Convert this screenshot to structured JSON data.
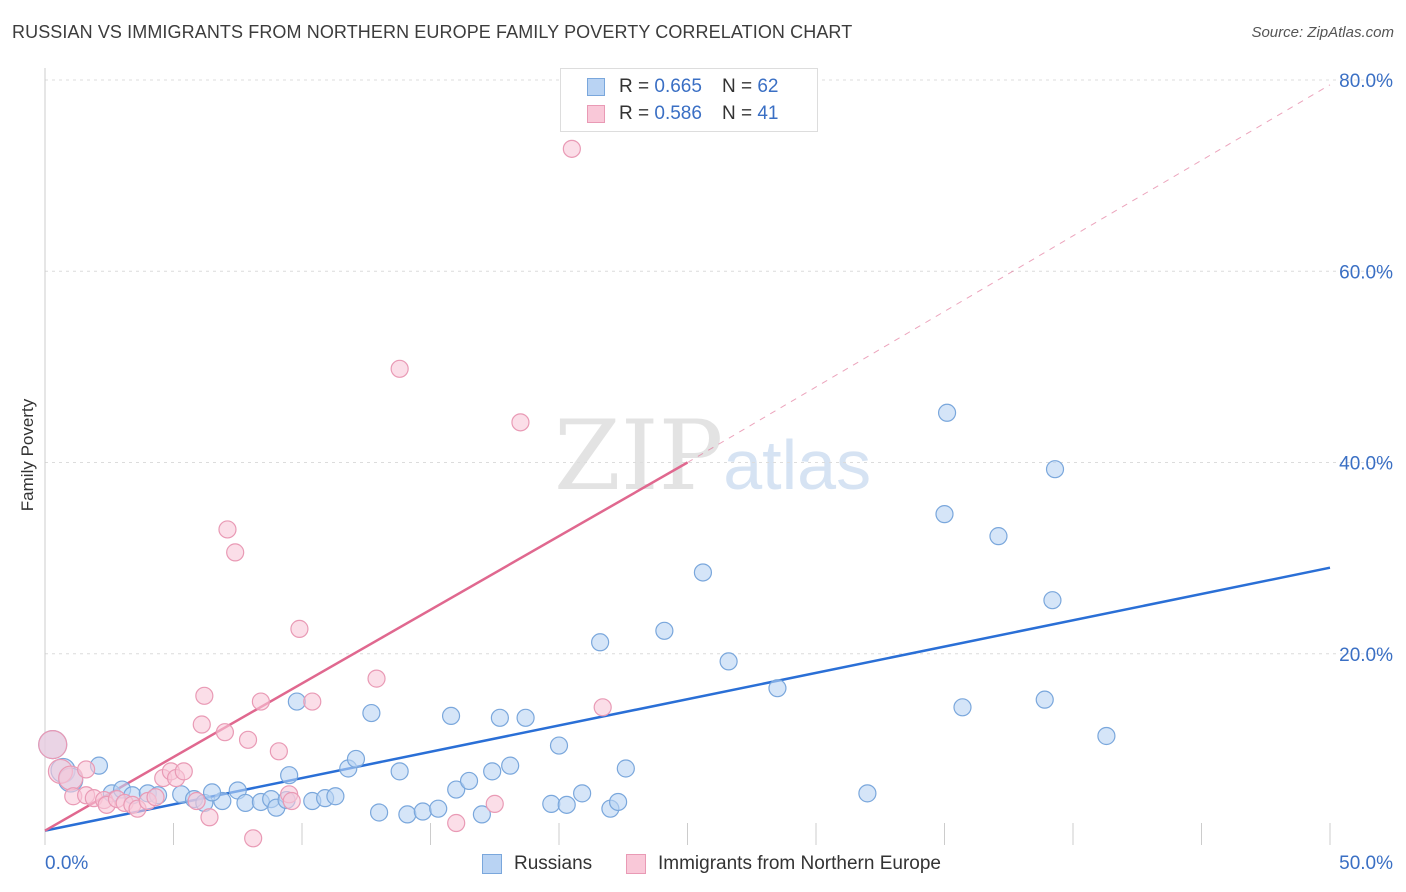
{
  "header": {
    "title": "RUSSIAN VS IMMIGRANTS FROM NORTHERN EUROPE FAMILY POVERTY CORRELATION CHART",
    "source": "Source: ZipAtlas.com"
  },
  "watermark": {
    "zip": "ZIP",
    "atlas": "atlas"
  },
  "legend": {
    "rows": [
      {
        "r_label": "R =",
        "r_value": "0.665",
        "n_label": "N =",
        "n_value": "62"
      },
      {
        "r_label": "R =",
        "r_value": "0.586",
        "n_label": "N =",
        "n_value": "41"
      }
    ]
  },
  "bottom_legend": {
    "series1": "Russians",
    "series2": "Immigrants from Northern Europe"
  },
  "colors": {
    "blue_fill": "#b9d3f3",
    "blue_stroke": "#7aa7dc",
    "blue_line": "#2a6fd6",
    "pink_fill": "#f9c8d8",
    "pink_stroke": "#e99ab5",
    "pink_line": "#e0688f",
    "axis_text": "#3a6fc4",
    "grid": "#dcdcdc"
  },
  "chart_data": {
    "type": "scatter",
    "title": "RUSSIAN VS IMMIGRANTS FROM NORTHERN EUROPE FAMILY POVERTY CORRELATION CHART",
    "xlabel": "",
    "ylabel": "Family Poverty",
    "xlim": [
      0,
      50
    ],
    "ylim": [
      0,
      80
    ],
    "x_tick_labels": [
      "0.0%",
      "50.0%"
    ],
    "y_ticks": [
      20,
      40,
      60,
      80
    ],
    "y_tick_labels": [
      "20.0%",
      "40.0%",
      "60.0%",
      "80.0%"
    ],
    "grid": true,
    "legend_position": "top-center",
    "series": [
      {
        "name": "Russians",
        "R": 0.665,
        "N": 62,
        "trend": {
          "x0": 0,
          "y0": 1.5,
          "x1": 50,
          "y1": 29.0
        },
        "points": [
          [
            0.3,
            10.5
          ],
          [
            0.7,
            7.8
          ],
          [
            1.0,
            6.8
          ],
          [
            2.1,
            8.3
          ],
          [
            2.6,
            5.4
          ],
          [
            3.0,
            5.8
          ],
          [
            3.4,
            5.2
          ],
          [
            4.0,
            5.4
          ],
          [
            4.4,
            5.2
          ],
          [
            5.3,
            5.3
          ],
          [
            5.8,
            4.8
          ],
          [
            6.2,
            4.4
          ],
          [
            6.9,
            4.6
          ],
          [
            7.5,
            5.7
          ],
          [
            7.8,
            4.4
          ],
          [
            8.4,
            4.5
          ],
          [
            8.8,
            4.8
          ],
          [
            9.0,
            3.9
          ],
          [
            9.4,
            4.7
          ],
          [
            9.8,
            15.0
          ],
          [
            10.4,
            4.6
          ],
          [
            10.9,
            4.9
          ],
          [
            11.3,
            5.1
          ],
          [
            11.8,
            8.0
          ],
          [
            12.1,
            9.0
          ],
          [
            12.7,
            13.8
          ],
          [
            13.0,
            3.4
          ],
          [
            13.8,
            7.7
          ],
          [
            14.1,
            3.2
          ],
          [
            14.7,
            3.5
          ],
          [
            15.3,
            3.8
          ],
          [
            15.8,
            13.5
          ],
          [
            16.0,
            5.8
          ],
          [
            16.5,
            6.7
          ],
          [
            17.0,
            3.2
          ],
          [
            17.4,
            7.7
          ],
          [
            17.7,
            13.3
          ],
          [
            18.1,
            8.3
          ],
          [
            18.7,
            13.3
          ],
          [
            19.7,
            4.3
          ],
          [
            20.0,
            10.4
          ],
          [
            20.3,
            4.2
          ],
          [
            20.9,
            5.4
          ],
          [
            21.6,
            21.2
          ],
          [
            22.0,
            3.8
          ],
          [
            22.3,
            4.5
          ],
          [
            22.6,
            8.0
          ],
          [
            24.1,
            22.4
          ],
          [
            25.6,
            28.5
          ],
          [
            26.6,
            19.2
          ],
          [
            28.5,
            16.4
          ],
          [
            32.0,
            5.4
          ],
          [
            35.0,
            34.6
          ],
          [
            35.1,
            45.2
          ],
          [
            35.7,
            14.4
          ],
          [
            37.1,
            32.3
          ],
          [
            38.9,
            15.2
          ],
          [
            39.2,
            25.6
          ],
          [
            39.3,
            39.3
          ],
          [
            41.3,
            11.4
          ],
          [
            9.5,
            7.3
          ],
          [
            6.5,
            5.5
          ]
        ]
      },
      {
        "name": "Immigrants from Northern Europe",
        "R": 0.586,
        "N": 41,
        "trend": {
          "x0": 0,
          "y0": 1.5,
          "x1": 25,
          "y1": 40.0,
          "dashed_to": {
            "x": 50,
            "y": 79.5
          }
        },
        "points": [
          [
            0.3,
            10.5
          ],
          [
            0.6,
            7.7
          ],
          [
            1.0,
            7.0
          ],
          [
            1.1,
            5.1
          ],
          [
            1.6,
            5.2
          ],
          [
            1.9,
            4.9
          ],
          [
            2.3,
            4.7
          ],
          [
            2.4,
            4.2
          ],
          [
            2.8,
            4.8
          ],
          [
            3.1,
            4.4
          ],
          [
            3.4,
            4.2
          ],
          [
            3.6,
            3.8
          ],
          [
            4.0,
            4.6
          ],
          [
            4.3,
            5.0
          ],
          [
            4.6,
            7.0
          ],
          [
            4.9,
            7.7
          ],
          [
            5.1,
            7.0
          ],
          [
            5.4,
            7.7
          ],
          [
            5.9,
            4.6
          ],
          [
            6.2,
            15.6
          ],
          [
            6.4,
            2.9
          ],
          [
            6.1,
            12.6
          ],
          [
            7.0,
            11.8
          ],
          [
            7.1,
            33.0
          ],
          [
            7.4,
            30.6
          ],
          [
            7.9,
            11.0
          ],
          [
            8.1,
            0.7
          ],
          [
            8.4,
            15.0
          ],
          [
            9.1,
            9.8
          ],
          [
            9.5,
            5.3
          ],
          [
            9.6,
            4.6
          ],
          [
            9.9,
            22.6
          ],
          [
            10.4,
            15.0
          ],
          [
            12.9,
            17.4
          ],
          [
            13.8,
            49.8
          ],
          [
            16.0,
            2.3
          ],
          [
            17.5,
            4.3
          ],
          [
            18.5,
            44.2
          ],
          [
            20.5,
            72.8
          ],
          [
            21.7,
            14.4
          ],
          [
            1.6,
            7.9
          ]
        ]
      }
    ]
  }
}
